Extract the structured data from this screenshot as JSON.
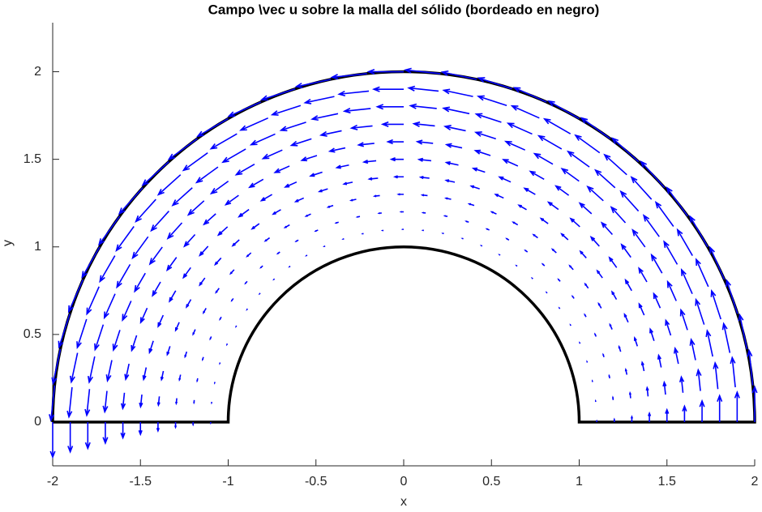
{
  "chart_data": {
    "type": "quiver",
    "title": "Campo \\vec u sobre la malla del sólido (bordeado en negro)",
    "x_label": "x",
    "y_label": "y",
    "xlim": [
      -2,
      2
    ],
    "ylim": [
      -0.25,
      2.28
    ],
    "xticks": [
      -2,
      -1.5,
      -1,
      -0.5,
      0,
      0.5,
      1,
      1.5,
      2
    ],
    "yticks": [
      0,
      0.5,
      1,
      1.5,
      2
    ],
    "color": "#0000ff",
    "boundary_color": "#000000",
    "inner_radius": 1,
    "outer_radius": 2,
    "radii": [
      1.1,
      1.2,
      1.3,
      1.4,
      1.5,
      1.6,
      1.7,
      1.8,
      1.9,
      2.0
    ],
    "magnitudes": [
      0.005,
      0.015,
      0.03,
      0.05,
      0.07,
      0.09,
      0.12,
      0.15,
      0.17,
      0.2
    ],
    "angles_deg": [
      0,
      6,
      12,
      18,
      24,
      30,
      36,
      42,
      48,
      54,
      60,
      66,
      72,
      78,
      84,
      90,
      96,
      102,
      108,
      114,
      120,
      126,
      132,
      138,
      144,
      150,
      156,
      162,
      168,
      174,
      180
    ]
  }
}
